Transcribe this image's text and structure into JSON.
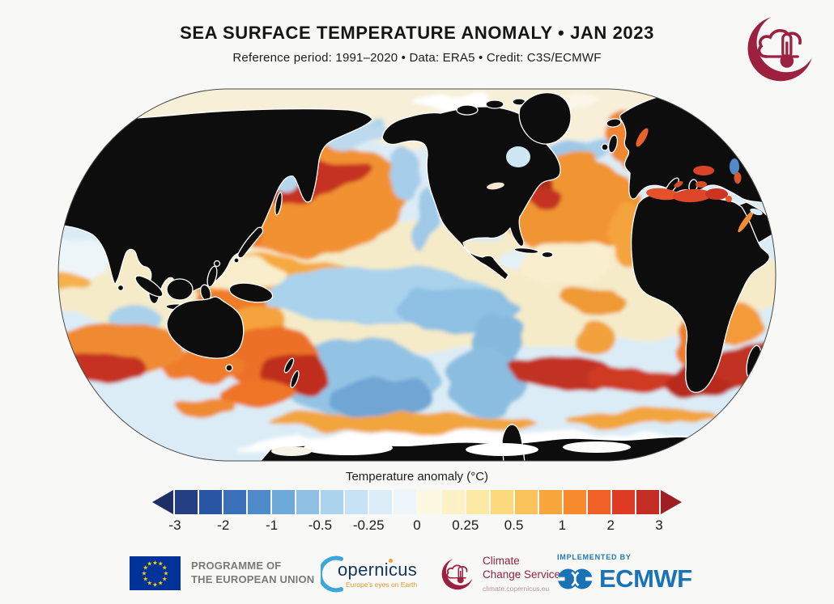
{
  "header": {
    "title": "SEA SURFACE TEMPERATURE ANOMALY • JAN 2023",
    "subtitle": "Reference period: 1991–2020 • Data: ERA5 • Credit: C3S/ECMWF"
  },
  "colorbar": {
    "label": "Temperature anomaly (°C)",
    "tick_labels": [
      "-3",
      "-2",
      "-1",
      "-0.5",
      "-0.25",
      "0",
      "0.25",
      "0.5",
      "1",
      "2",
      "3"
    ],
    "segment_colors": [
      "#253f85",
      "#2a55a2",
      "#3a70b9",
      "#4f8bc9",
      "#6fa9d8",
      "#8fc0e3",
      "#abd3ed",
      "#c6e2f4",
      "#dcedf8",
      "#edf6fb",
      "#fdf8e2",
      "#fdf2c6",
      "#fce9a4",
      "#fbd97c",
      "#f9c25a",
      "#f8a63c",
      "#f68a2d",
      "#ef6126",
      "#de3b24",
      "#c52c23"
    ],
    "left_arrow_color": "#1e2f66",
    "right_arrow_color": "#9f1e23"
  },
  "map": {
    "projection_outline": "Robinson",
    "land_color": "#0d0d0d",
    "coastline_color": "#ffffff",
    "sea_ice_color": "#ffffff",
    "arctic_color": "#f7efd8"
  },
  "footer": {
    "eu_programme": {
      "label_line1": "PROGRAMME OF",
      "label_line2": "THE EUROPEAN UNION",
      "flag_blue": "#003399",
      "star_yellow": "#ffcc00"
    },
    "copernicus": {
      "wordmark": "opernicus",
      "tagline": "Europe's eyes on Earth"
    },
    "c3s": {
      "name_line1": "Climate",
      "name_line2": "Change Service",
      "url": "climate.copernicus.eu",
      "brand_maroon": "#93253d"
    },
    "ecmwf": {
      "implemented_by": "IMPLEMENTED BY",
      "wordmark": "ECMWF",
      "brand_blue": "#1a73b5"
    }
  }
}
